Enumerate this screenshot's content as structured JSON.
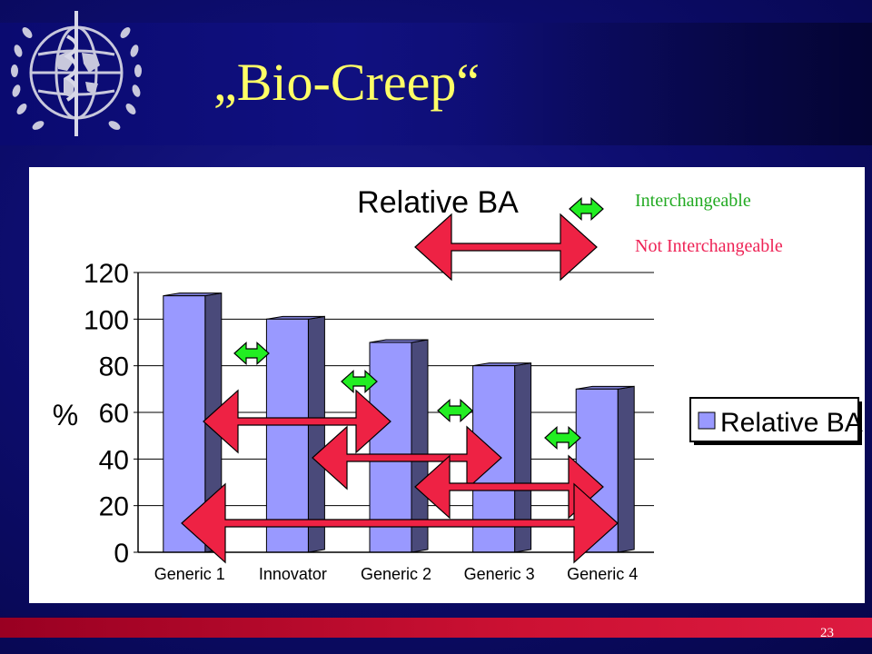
{
  "slide": {
    "title": "„Bio-Creep“",
    "page_number": "23"
  },
  "legend_arrows": {
    "interchangeable": "Interchangeable",
    "not_interchangeable": "Not Interchangeable",
    "interchangeable_color": "#22ee22",
    "not_interchangeable_color": "#ee2244"
  },
  "chart_data": {
    "type": "bar",
    "title": "Relative BA",
    "ylabel": "%",
    "categories": [
      "Generic 1",
      "Innovator",
      "Generic 2",
      "Generic 3",
      "Generic 4"
    ],
    "series": [
      {
        "name": "Relative BA",
        "values": [
          110,
          100,
          90,
          80,
          70
        ],
        "color": "#9999ff"
      }
    ],
    "ylim": [
      0,
      120
    ],
    "yticks": [
      "0",
      "20",
      "40",
      "60",
      "80",
      "100",
      "120"
    ],
    "grid": true,
    "legend_position": "right"
  },
  "colors": {
    "background": "#0d0d6e",
    "title": "#ffff66",
    "bar": "#9999ff",
    "footer": "#cc1133"
  }
}
